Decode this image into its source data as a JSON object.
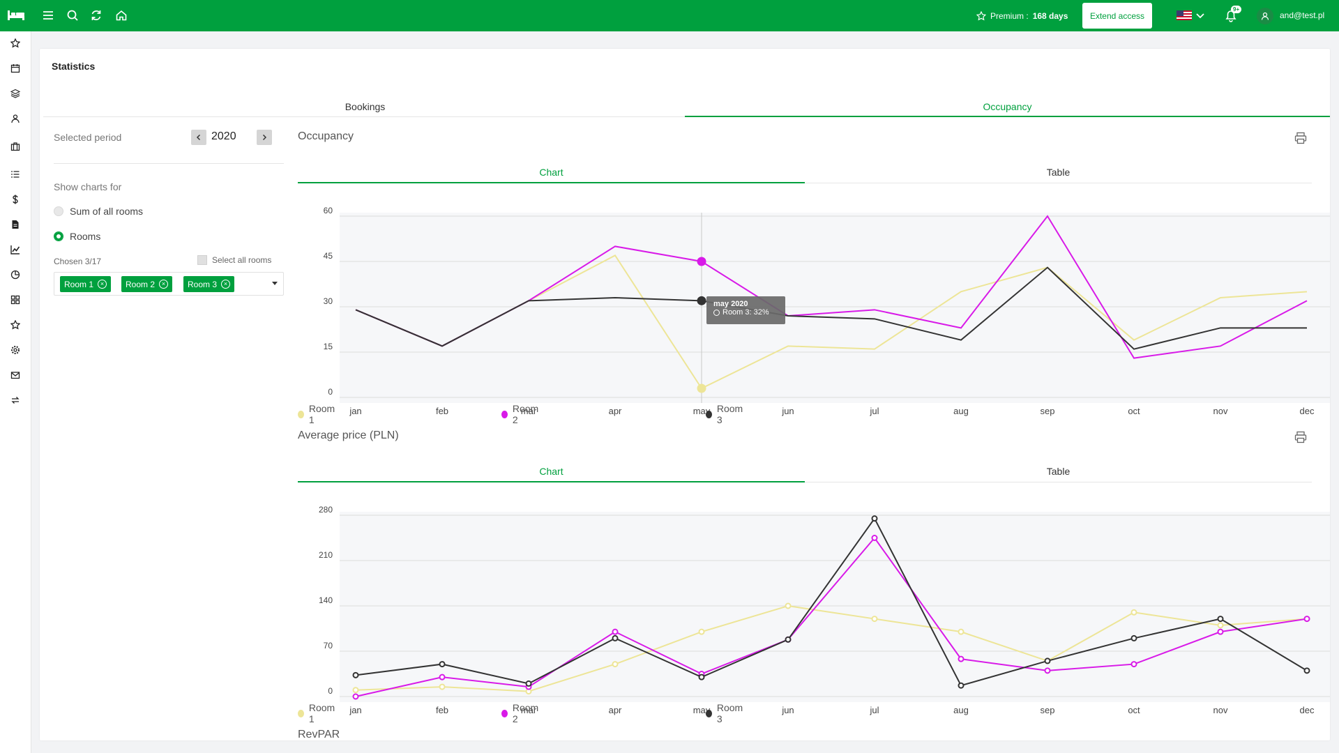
{
  "topbar": {
    "icons": [
      "hamburger-icon",
      "search-icon",
      "refresh-icon",
      "home-icon"
    ],
    "premium_label": "Premium :",
    "premium_days": "168 days",
    "extend_label": "Extend access",
    "notifications_badge": "9+",
    "user_email": "and@test.pl",
    "accent": "#00a03e"
  },
  "sidebar": {
    "icons": [
      "star-icon",
      "calendar-icon",
      "layers-icon",
      "user-icon",
      "suitcase-icon",
      "list-icon",
      "dollar-icon",
      "document-icon",
      "chart-line-icon",
      "pie-chart-icon",
      "grid-icon",
      "star-outline-icon",
      "gear-icon",
      "mail-icon",
      "sync-icon"
    ]
  },
  "page": {
    "title": "Statistics",
    "tabs": [
      "Bookings",
      "Occupancy"
    ],
    "active_tab": "Occupancy"
  },
  "filters": {
    "period_label": "Selected period",
    "year": "2020",
    "show_charts_label": "Show charts for",
    "options": [
      "Sum of all rooms",
      "Rooms"
    ],
    "selected_option": "Rooms",
    "chosen_label": "Chosen 3/17",
    "select_all_label": "Select all rooms",
    "chips": [
      "Room 1",
      "Room 2",
      "Room 3"
    ]
  },
  "sections": [
    {
      "title": "Occupancy",
      "tabs": [
        "Chart",
        "Table"
      ]
    },
    {
      "title": "Average price (PLN)",
      "tabs": [
        "Chart",
        "Table"
      ]
    },
    {
      "title": "RevPAR"
    }
  ],
  "tooltip": {
    "title": "may 2020",
    "value": "Room 3: 32%"
  },
  "chart_data": [
    {
      "type": "line",
      "title": "Occupancy",
      "x": [
        "jan",
        "feb",
        "mar",
        "apr",
        "may",
        "jun",
        "jul",
        "aug",
        "sep",
        "oct",
        "nov",
        "dec"
      ],
      "ylim": [
        0,
        60
      ],
      "yticks": [
        0,
        15,
        30,
        45,
        60
      ],
      "grid": true,
      "legend": "bottom",
      "series": [
        {
          "name": "Room 1",
          "color": "#ede597",
          "values": [
            29,
            17,
            32,
            47,
            3,
            17,
            16,
            35,
            43,
            19,
            33,
            35
          ]
        },
        {
          "name": "Room 2",
          "color": "#d81ae8",
          "values": [
            29,
            17,
            32,
            50,
            45,
            27,
            29,
            23,
            60,
            13,
            17,
            32
          ]
        },
        {
          "name": "Room 3",
          "color": "#333333",
          "values": [
            29,
            17,
            32,
            33,
            32,
            27,
            26,
            19,
            43,
            16,
            23,
            23
          ]
        }
      ]
    },
    {
      "type": "line",
      "title": "Average price (PLN)",
      "x": [
        "jan",
        "feb",
        "mar",
        "apr",
        "may",
        "jun",
        "jul",
        "aug",
        "sep",
        "oct",
        "nov",
        "dec"
      ],
      "ylim": [
        0,
        280
      ],
      "yticks": [
        0,
        70,
        140,
        210,
        280
      ],
      "grid": true,
      "legend": "bottom",
      "series": [
        {
          "name": "Room 1",
          "color": "#ede597",
          "values": [
            10,
            15,
            8,
            50,
            100,
            140,
            120,
            100,
            55,
            130,
            110,
            120
          ]
        },
        {
          "name": "Room 2",
          "color": "#d81ae8",
          "values": [
            0,
            30,
            15,
            100,
            35,
            88,
            245,
            58,
            40,
            50,
            100,
            120
          ]
        },
        {
          "name": "Room 3",
          "color": "#333333",
          "values": [
            33,
            50,
            20,
            90,
            30,
            88,
            275,
            17,
            55,
            90,
            120,
            40
          ]
        }
      ]
    }
  ]
}
